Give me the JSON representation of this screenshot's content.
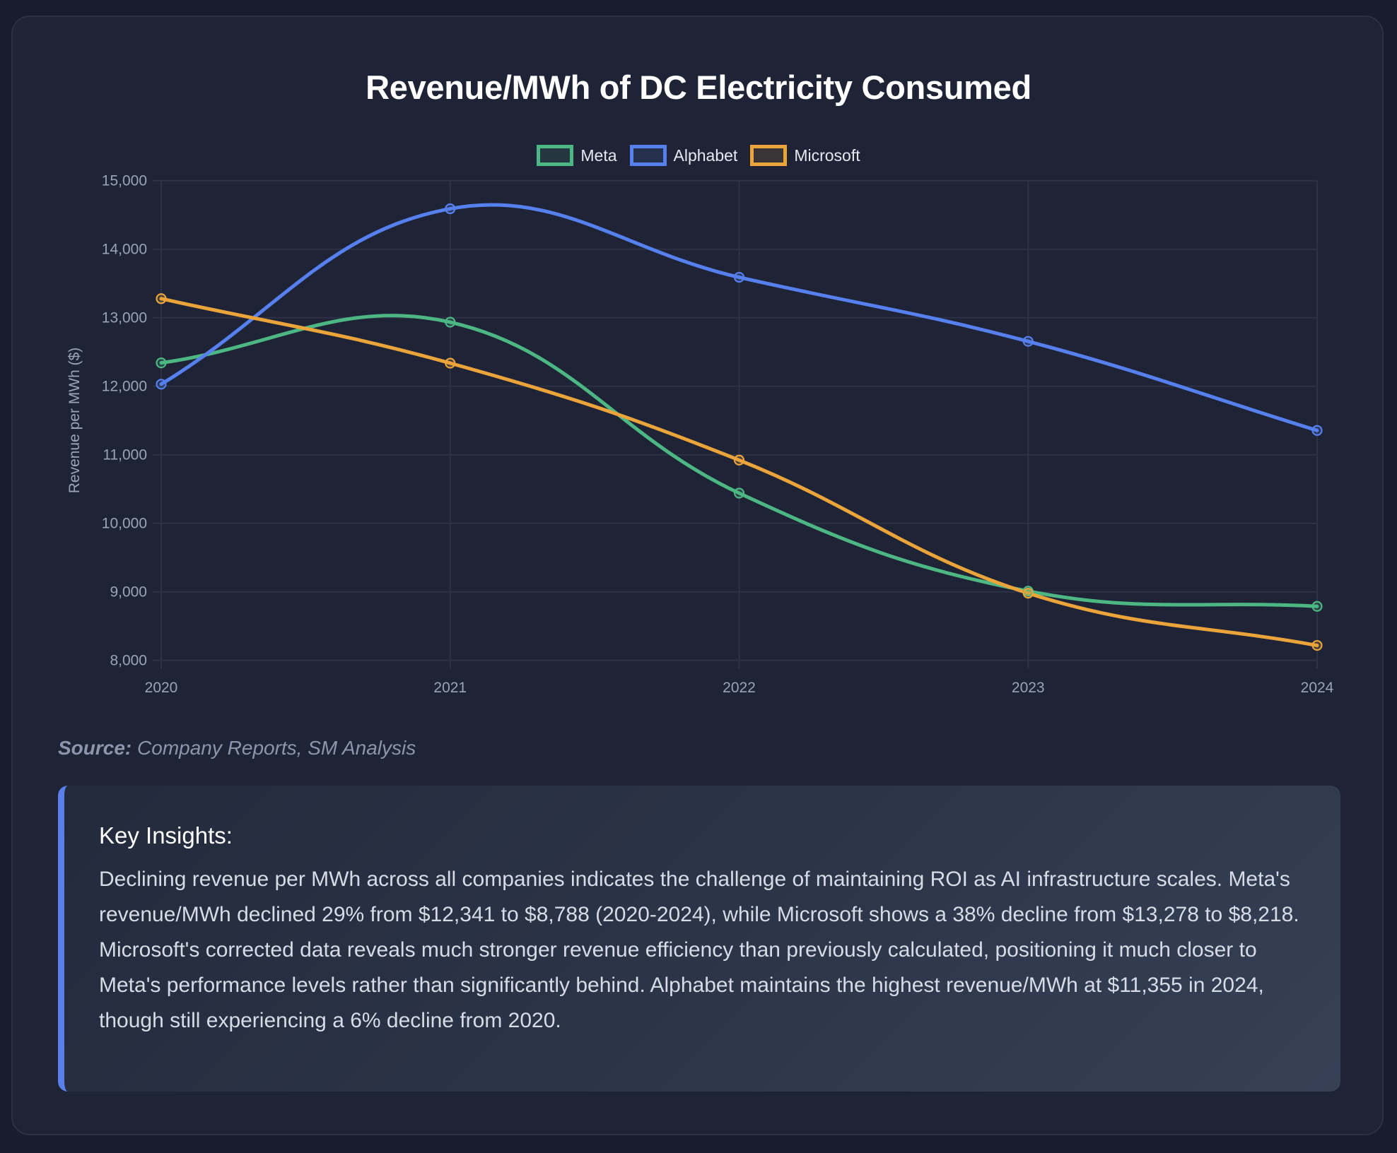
{
  "page": {
    "title": "Revenue/MWh of DC Electricity Consumed",
    "source_label": "Source:",
    "source_text": "Company Reports, SM Analysis",
    "insights": {
      "title": "Key Insights:",
      "text": "Declining revenue per MWh across all companies indicates the challenge of maintaining ROI as AI infrastructure scales. Meta's revenue/MWh declined 29% from $12,341 to $8,788 (2020-2024), while Microsoft shows a 38% decline from $13,278 to $8,218. Microsoft's corrected data reveals much stronger revenue efficiency than previously calculated, positioning it much closer to Meta's performance levels rather than significantly behind. Alphabet maintains the highest revenue/MWh at $11,355 in 2024, though still experiencing a 6% decline from 2020."
    },
    "colors": {
      "accent": "#5a7fe9",
      "background": "#181c2d",
      "card": "#1f2336",
      "grid": "#2c3244"
    }
  },
  "chart_data": {
    "type": "line",
    "title": "Revenue/MWh of DC Electricity Consumed",
    "xlabel": "",
    "ylabel": "Revenue per MWh ($)",
    "categories": [
      "2020",
      "2021",
      "2022",
      "2023",
      "2024"
    ],
    "ylim": [
      8000,
      15000
    ],
    "yticks": [
      8000,
      9000,
      10000,
      11000,
      12000,
      13000,
      14000,
      15000
    ],
    "ytick_labels": [
      "8,000",
      "9,000",
      "10,000",
      "11,000",
      "12,000",
      "13,000",
      "14,000",
      "15,000"
    ],
    "grid": true,
    "legend_position": "top-center",
    "smoothing": "cubic (tension 0.4)",
    "series": [
      {
        "name": "Meta",
        "color": "#4cb782",
        "values": [
          12341,
          12935,
          10440,
          9010,
          8788
        ]
      },
      {
        "name": "Alphabet",
        "color": "#5580ee",
        "values": [
          12030,
          14590,
          13590,
          12655,
          11355
        ]
      },
      {
        "name": "Microsoft",
        "color": "#eaa43a",
        "values": [
          13278,
          12337,
          10922,
          8980,
          8218
        ]
      }
    ]
  }
}
